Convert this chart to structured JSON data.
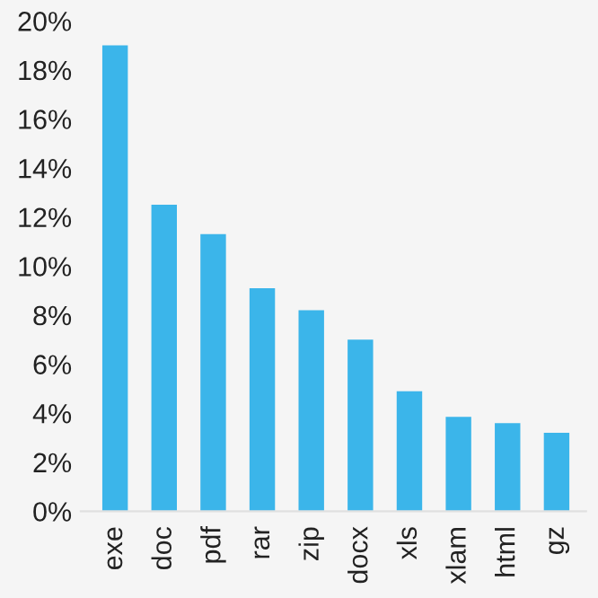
{
  "chart_data": {
    "type": "bar",
    "categories": [
      "exe",
      "doc",
      "pdf",
      "rar",
      "zip",
      "docx",
      "xls",
      "xlam",
      "html",
      "gz"
    ],
    "values": [
      19.0,
      12.5,
      11.3,
      9.1,
      8.2,
      7.0,
      4.9,
      3.85,
      3.6,
      3.2
    ],
    "color": "#3bb5ea",
    "ylim": [
      0,
      20
    ],
    "yticks": [
      {
        "value": 0,
        "label": "0%"
      },
      {
        "value": 2,
        "label": "2%"
      },
      {
        "value": 4,
        "label": "4%"
      },
      {
        "value": 6,
        "label": "6%"
      },
      {
        "value": 8,
        "label": "8%"
      },
      {
        "value": 10,
        "label": "10%"
      },
      {
        "value": 12,
        "label": "12%"
      },
      {
        "value": 14,
        "label": "14%"
      },
      {
        "value": 16,
        "label": "16%"
      },
      {
        "value": 18,
        "label": "18%"
      },
      {
        "value": 20,
        "label": "20%"
      }
    ],
    "grid": false,
    "legend": false
  }
}
